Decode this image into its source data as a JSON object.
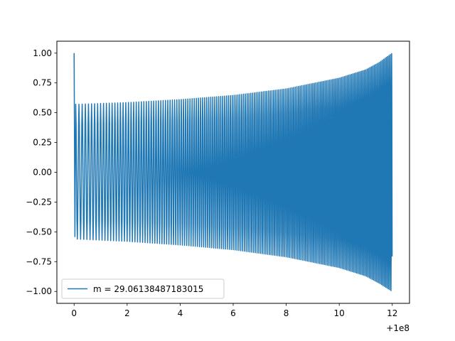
{
  "chart_data": {
    "type": "line",
    "title": "",
    "xlabel": "",
    "ylabel": "",
    "xlim": [
      -0.65,
      12.65
    ],
    "ylim": [
      -1.1,
      1.1
    ],
    "x_offset_label": "+1e8",
    "x_ticks": [
      0,
      2,
      4,
      6,
      8,
      10,
      12
    ],
    "x_tick_labels": [
      "0",
      "2",
      "4",
      "6",
      "8",
      "10",
      "12"
    ],
    "y_ticks": [
      1.0,
      0.75,
      0.5,
      0.25,
      0.0,
      -0.25,
      -0.5,
      -0.75,
      -1.0
    ],
    "y_tick_labels": [
      "1.00",
      "0.75",
      "0.50",
      "0.25",
      "0.00",
      "−0.25",
      "−0.50",
      "−0.75",
      "−1.00"
    ],
    "grid": false,
    "legend": "lower-left",
    "series": [
      {
        "name": "m = 29.06138487183015",
        "color": "#1f77b4",
        "x_start": 0,
        "x_end": 12,
        "initial_value": 1.0,
        "initial_min": -0.54,
        "upper_envelope": {
          "x": [
            0.05,
            2,
            4,
            6,
            8,
            10,
            11,
            11.5,
            12
          ],
          "y": [
            0.57,
            0.585,
            0.61,
            0.645,
            0.7,
            0.79,
            0.86,
            0.92,
            1.0
          ]
        },
        "lower_envelope": {
          "x": [
            0.05,
            2,
            4,
            6,
            8,
            10,
            11,
            11.5,
            12
          ],
          "y": [
            -0.56,
            -0.58,
            -0.61,
            -0.65,
            -0.71,
            -0.8,
            -0.87,
            -0.93,
            -1.0
          ]
        },
        "oscillation_frequency": {
          "x": [
            0,
            12
          ],
          "cycles_per_unit": [
            8,
            20
          ]
        }
      }
    ]
  }
}
